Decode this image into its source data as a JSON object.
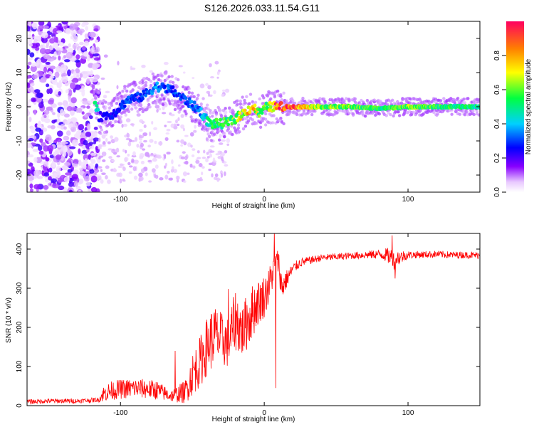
{
  "figure_title": "S126.2026.033.11.54.G11",
  "chart_data": [
    {
      "type": "heatmap",
      "title": "S126.2026.033.11.54.G11",
      "xlabel": "Height of straight line (km)",
      "ylabel": "Frequency (Hz)",
      "xlim": [
        -165,
        150
      ],
      "ylim": [
        -25,
        25
      ],
      "xticks": [
        -100,
        0,
        100
      ],
      "yticks": [
        -20,
        -10,
        0,
        10,
        20
      ],
      "colorbar": {
        "label": "Normalized spectral amplitude",
        "range": [
          0,
          1
        ],
        "ticks": [
          "0.0",
          "0.2",
          "0.4",
          "0.6",
          "0.8"
        ],
        "colors": [
          "#ffffff",
          "#e8c8ff",
          "#8800ff",
          "#0000ff",
          "#00d0ff",
          "#00ff40",
          "#ffff00",
          "#ff8000",
          "#ff0060"
        ]
      },
      "ridge": {
        "description": "dominant frequency track (km, Hz, relative amplitude)",
        "x": [
          -115,
          -105,
          -95,
          -85,
          -75,
          -65,
          -55,
          -45,
          -38,
          -30,
          -22,
          -15,
          -8,
          -3,
          2,
          10,
          20,
          40,
          60,
          80,
          100,
          120,
          148
        ],
        "y": [
          -3,
          -2,
          2,
          3,
          6,
          5,
          2,
          -1,
          -5,
          -5,
          -4,
          -2,
          0,
          -2,
          0,
          0,
          0,
          0,
          0,
          -0.5,
          0,
          0,
          0
        ],
        "amp": [
          0.22,
          0.25,
          0.3,
          0.28,
          0.35,
          0.3,
          0.3,
          0.35,
          0.5,
          0.55,
          0.6,
          0.7,
          0.8,
          0.55,
          0.6,
          0.95,
          0.9,
          0.6,
          0.6,
          0.55,
          0.6,
          0.55,
          0.5
        ]
      }
    },
    {
      "type": "line",
      "xlabel": "Height of straight line (km)",
      "ylabel": "SNR (10 * v/v)",
      "xlim": [
        -165,
        150
      ],
      "ylim": [
        0,
        440
      ],
      "xticks": [
        -100,
        0,
        100
      ],
      "yticks": [
        0,
        100,
        200,
        300,
        400
      ],
      "series": [
        {
          "name": "SNR",
          "color": "#ff0000",
          "x": [
            -165,
            -150,
            -130,
            -115,
            -112,
            -105,
            -90,
            -75,
            -65,
            -55,
            -50,
            -45,
            -40,
            -35,
            -30,
            -25,
            -20,
            -15,
            -10,
            -5,
            0,
            3,
            5,
            8,
            10,
            12,
            15,
            20,
            25,
            30,
            40,
            50,
            60,
            70,
            80,
            85,
            90,
            95,
            100,
            110,
            120,
            130,
            140,
            150
          ],
          "y": [
            10,
            12,
            12,
            15,
            30,
            40,
            45,
            40,
            25,
            35,
            80,
            110,
            150,
            180,
            170,
            160,
            220,
            190,
            230,
            260,
            280,
            300,
            330,
            360,
            370,
            300,
            320,
            350,
            365,
            370,
            378,
            380,
            383,
            385,
            387,
            385,
            375,
            380,
            385,
            386,
            387,
            385,
            385,
            384
          ],
          "noise_amp": [
            6,
            6,
            6,
            6,
            20,
            25,
            25,
            25,
            15,
            30,
            55,
            65,
            75,
            80,
            70,
            65,
            80,
            70,
            75,
            60,
            55,
            50,
            45,
            40,
            30,
            45,
            25,
            15,
            12,
            10,
            9,
            9,
            9,
            10,
            12,
            18,
            28,
            18,
            10,
            9,
            9,
            9,
            9,
            9
          ],
          "spikes": [
            {
              "x": 7,
              "y": 445
            },
            {
              "x": 8,
              "y": 45
            },
            {
              "x": 89,
              "y": 435
            },
            {
              "x": 91,
              "y": 325
            },
            {
              "x": -62,
              "y": 140
            },
            {
              "x": -25,
              "y": 298
            }
          ]
        }
      ]
    }
  ]
}
